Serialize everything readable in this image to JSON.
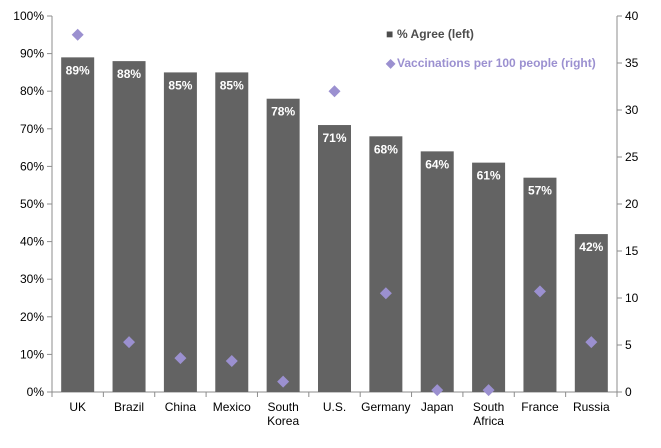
{
  "chart_data": {
    "type": "bar",
    "categories": [
      "UK",
      "Brazil",
      "China",
      "Mexico",
      "South Korea",
      "U.S.",
      "Germany",
      "Japan",
      "South Africa",
      "France",
      "Russia"
    ],
    "category_lines": [
      [
        "UK"
      ],
      [
        "Brazil"
      ],
      [
        "China"
      ],
      [
        "Mexico"
      ],
      [
        "South",
        "Korea"
      ],
      [
        "U.S."
      ],
      [
        "Germany"
      ],
      [
        "Japan"
      ],
      [
        "South",
        "Africa"
      ],
      [
        "France"
      ],
      [
        "Russia"
      ]
    ],
    "series": [
      {
        "name": "% Agree (left)",
        "type": "bar",
        "axis": "left",
        "color": "#636363",
        "values": [
          89,
          88,
          85,
          85,
          78,
          71,
          68,
          64,
          61,
          57,
          42
        ],
        "labels": [
          "89%",
          "88%",
          "85%",
          "85%",
          "78%",
          "71%",
          "68%",
          "64%",
          "61%",
          "57%",
          "42%"
        ]
      },
      {
        "name": "Vaccinations per 100 people (right)",
        "type": "scatter",
        "axis": "right",
        "color": "#9b90d0",
        "values": [
          38,
          5.3,
          3.6,
          3.3,
          1.1,
          32,
          10.5,
          0.2,
          0.2,
          10.7,
          5.3
        ]
      }
    ],
    "y_left": {
      "ylim": [
        0,
        100
      ],
      "ticks": [
        0,
        10,
        20,
        30,
        40,
        50,
        60,
        70,
        80,
        90,
        100
      ],
      "tick_labels": [
        "0%",
        "10%",
        "20%",
        "30%",
        "40%",
        "50%",
        "60%",
        "70%",
        "80%",
        "90%",
        "100%"
      ]
    },
    "y_right": {
      "ylim": [
        0,
        40
      ],
      "ticks": [
        0,
        5,
        10,
        15,
        20,
        25,
        30,
        35,
        40
      ],
      "tick_labels": [
        "0",
        "5",
        "10",
        "15",
        "20",
        "25",
        "30",
        "35",
        "40"
      ]
    },
    "legend": {
      "placement": "top-right",
      "items": [
        {
          "marker": "■",
          "label": "% Agree (left)",
          "color": "#4d4d4d"
        },
        {
          "marker": "◆",
          "label": "Vaccinations per 100 people (right)",
          "color": "#9b90d0"
        }
      ]
    },
    "grid": false,
    "title": "",
    "xlabel": "",
    "ylabel": ""
  }
}
